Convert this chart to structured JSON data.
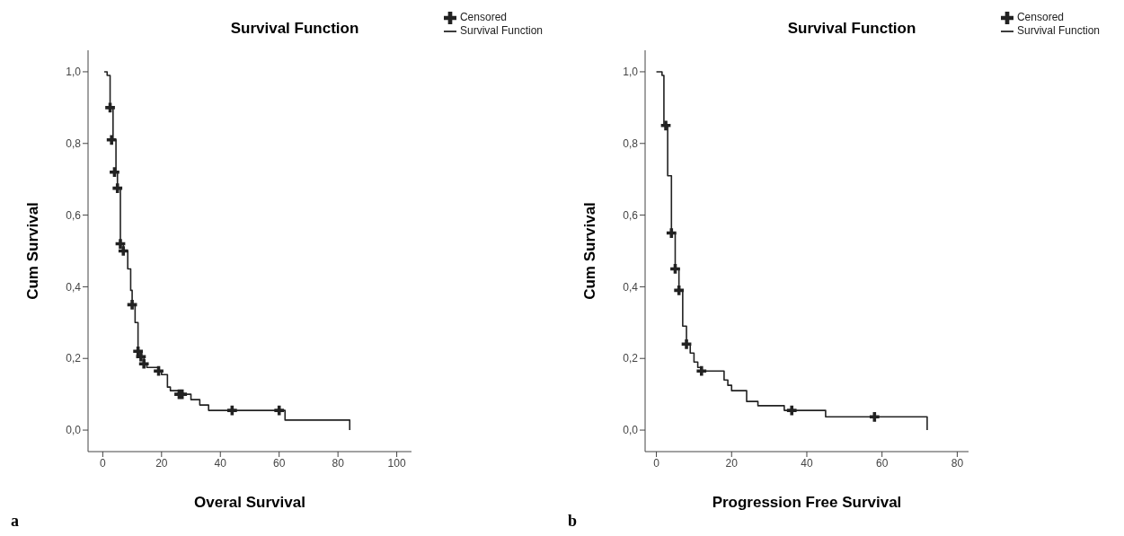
{
  "chart_data": [
    {
      "type": "step",
      "title": "Survival Function",
      "xlabel": "Overal Survival",
      "ylabel": "Cum Survival",
      "annotations": [
        "a"
      ],
      "xlim": [
        -5,
        105
      ],
      "xticks": [
        0,
        20,
        40,
        60,
        80,
        100
      ],
      "ylim": [
        -0.06,
        1.06
      ],
      "yticks": [
        {
          "value": 0,
          "label": "0,0"
        },
        {
          "value": 0.2,
          "label": "0,2"
        },
        {
          "value": 0.4,
          "label": "0,4"
        },
        {
          "value": 0.6,
          "label": "0,6"
        },
        {
          "value": 0.8,
          "label": "0,8"
        },
        {
          "value": 1,
          "label": "1,0"
        }
      ],
      "grid": false,
      "legend": "top right",
      "line_style": "solid",
      "series": [
        {
          "name": "Survival Function",
          "type": "step",
          "color": "#222222",
          "marker": "none",
          "x": [
            0.5,
            1.5,
            2.5,
            3.5,
            4.5,
            5,
            6,
            7,
            8.5,
            9.5,
            10,
            11,
            12,
            13,
            14,
            15,
            19,
            20,
            22,
            23,
            26,
            30,
            33,
            36,
            62,
            84,
            84
          ],
          "values": [
            1.0,
            0.99,
            0.9,
            0.81,
            0.72,
            0.675,
            0.52,
            0.5,
            0.45,
            0.39,
            0.35,
            0.3,
            0.22,
            0.205,
            0.185,
            0.175,
            0.165,
            0.155,
            0.12,
            0.11,
            0.1,
            0.085,
            0.07,
            0.055,
            0.028,
            0.028,
            0.0
          ]
        },
        {
          "name": "Censored",
          "type": "scatter",
          "color": "#222222",
          "marker": "cross",
          "x": [
            2.5,
            3,
            4,
            5,
            6,
            7,
            10,
            12,
            13,
            14,
            19,
            26,
            27,
            44,
            60
          ],
          "values": [
            0.9,
            0.81,
            0.72,
            0.675,
            0.52,
            0.5,
            0.35,
            0.22,
            0.205,
            0.185,
            0.165,
            0.1,
            0.1,
            0.055,
            0.055
          ]
        }
      ]
    },
    {
      "type": "step",
      "title": "Survival Function",
      "xlabel": "Progression Free Survival",
      "ylabel": "Cum Survival",
      "annotations": [
        "b"
      ],
      "xlim": [
        -3,
        83
      ],
      "xticks": [
        0,
        20,
        40,
        60,
        80
      ],
      "ylim": [
        -0.06,
        1.06
      ],
      "yticks": [
        {
          "value": 0,
          "label": "0,0"
        },
        {
          "value": 0.2,
          "label": "0,2"
        },
        {
          "value": 0.4,
          "label": "0,4"
        },
        {
          "value": 0.6,
          "label": "0,6"
        },
        {
          "value": 0.8,
          "label": "0,8"
        },
        {
          "value": 1,
          "label": "1,0"
        }
      ],
      "grid": false,
      "legend": "top right",
      "line_style": "solid",
      "series": [
        {
          "name": "Survival Function",
          "type": "step",
          "color": "#222222",
          "marker": "none",
          "x": [
            0,
            1.5,
            2,
            3,
            4,
            5,
            6,
            7,
            8,
            9,
            10,
            11,
            12,
            18,
            19,
            20,
            24,
            27,
            34,
            45,
            72,
            72
          ],
          "values": [
            1.0,
            0.99,
            0.85,
            0.71,
            0.55,
            0.45,
            0.39,
            0.29,
            0.24,
            0.215,
            0.19,
            0.175,
            0.165,
            0.14,
            0.125,
            0.11,
            0.08,
            0.068,
            0.055,
            0.037,
            0.037,
            0.0
          ]
        },
        {
          "name": "Censored",
          "type": "scatter",
          "color": "#222222",
          "marker": "cross",
          "x": [
            2.5,
            4,
            5,
            6,
            8,
            12,
            36,
            58
          ],
          "values": [
            0.85,
            0.55,
            0.45,
            0.39,
            0.24,
            0.165,
            0.055,
            0.037
          ]
        }
      ]
    }
  ]
}
